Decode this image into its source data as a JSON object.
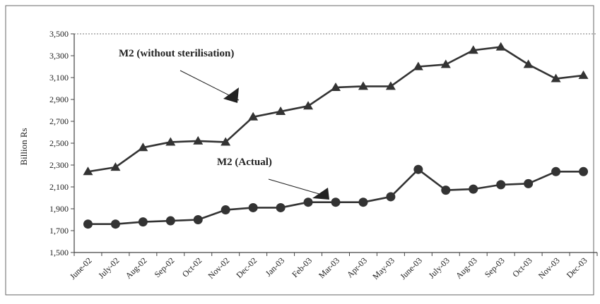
{
  "chart_data": {
    "type": "line",
    "ylabel": "Billion Rs",
    "ylim": [
      1500,
      3500
    ],
    "yticks": [
      "1,500",
      "1,700",
      "1,900",
      "2,100",
      "2,300",
      "2,500",
      "2,700",
      "2,900",
      "3,100",
      "3,300",
      "3,500"
    ],
    "yticks_values": [
      1500,
      1700,
      1900,
      2100,
      2300,
      2500,
      2700,
      2900,
      3100,
      3300,
      3500
    ],
    "grid": false,
    "categories": [
      "June-02",
      "July-02",
      "Aug-02",
      "Sep-02",
      "Oct-02",
      "Nov-02",
      "Dec-02",
      "Jan-03",
      "Feb-03",
      "Mar-03",
      "Apr-03",
      "May-03",
      "June-03",
      "July-03",
      "Aug-03",
      "Sep-03",
      "Oct-03",
      "Nov-03",
      "Dec-03"
    ],
    "series": [
      {
        "name": "M2 (without sterilisation)",
        "marker": "triangle",
        "color": "#333333",
        "values": [
          2240,
          2280,
          2460,
          2510,
          2520,
          2510,
          2740,
          2790,
          2840,
          3010,
          3020,
          3020,
          3200,
          3220,
          3350,
          3380,
          3220,
          3090,
          3120
        ]
      },
      {
        "name": "M2 (Actual)",
        "marker": "circle",
        "color": "#333333",
        "values": [
          1760,
          1760,
          1780,
          1790,
          1800,
          1890,
          1910,
          1910,
          1960,
          1960,
          1960,
          2010,
          2260,
          2070,
          2080,
          2120,
          2130,
          2240,
          2240
        ]
      }
    ]
  }
}
